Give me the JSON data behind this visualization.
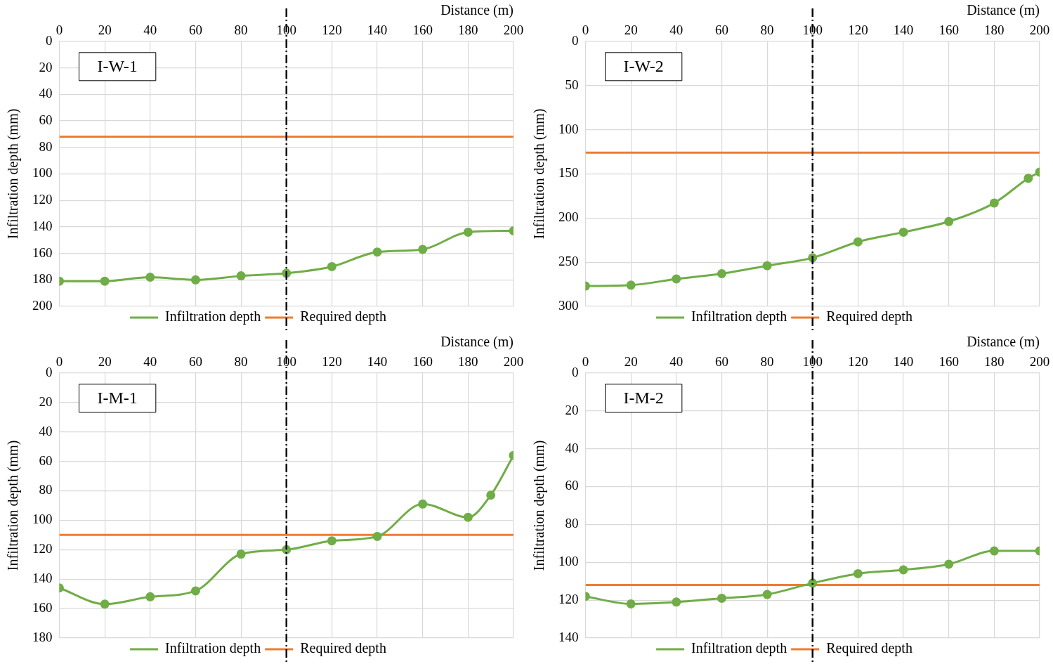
{
  "chart_data": [
    {
      "type": "line",
      "title": "I-W-1",
      "xlabel": "Distance (m)",
      "ylabel": "Infiltration depth (mm)",
      "xlim": [
        0,
        200
      ],
      "xticks": [
        0,
        20,
        40,
        60,
        80,
        100,
        120,
        140,
        160,
        180,
        200
      ],
      "ylim": [
        200,
        0
      ],
      "yticks": [
        0,
        20,
        40,
        60,
        80,
        100,
        120,
        140,
        160,
        180,
        200
      ],
      "grid": true,
      "legend": "bottom",
      "series": [
        {
          "name": "Infiltration depth",
          "color": "#70ad47",
          "marker": "circle",
          "x": [
            0,
            20,
            40,
            60,
            80,
            100,
            120,
            140,
            160,
            180,
            200
          ],
          "values": [
            181,
            181,
            178,
            180,
            177,
            175,
            170,
            159,
            157,
            144,
            143
          ]
        },
        {
          "name": "Required depth",
          "color": "#ed7d31",
          "marker": "none",
          "x": [
            0,
            200
          ],
          "values": [
            72,
            72
          ]
        }
      ],
      "ref_lines": [
        {
          "axis": "x",
          "value": 100,
          "color": "#000000",
          "line_style": "dashed"
        }
      ]
    },
    {
      "type": "line",
      "title": "I-W-2",
      "xlabel": "Distance (m)",
      "ylabel": "Infiltration depth (mm)",
      "xlim": [
        0,
        200
      ],
      "xticks": [
        0,
        20,
        40,
        60,
        80,
        100,
        120,
        140,
        160,
        180,
        200
      ],
      "ylim": [
        300,
        0
      ],
      "yticks": [
        0,
        50,
        100,
        150,
        200,
        250,
        300
      ],
      "grid": true,
      "legend": "bottom",
      "series": [
        {
          "name": "Infiltration depth",
          "color": "#70ad47",
          "marker": "circle",
          "x": [
            0,
            20,
            40,
            60,
            80,
            100,
            120,
            140,
            160,
            180,
            195,
            200
          ],
          "values": [
            277,
            276,
            269,
            263,
            254,
            245,
            227,
            216,
            204,
            183,
            155,
            148
          ]
        },
        {
          "name": "Required depth",
          "color": "#ed7d31",
          "marker": "none",
          "x": [
            0,
            200
          ],
          "values": [
            126,
            126
          ]
        }
      ],
      "ref_lines": [
        {
          "axis": "x",
          "value": 100,
          "color": "#000000",
          "line_style": "dashed"
        }
      ]
    },
    {
      "type": "line",
      "title": "I-M-1",
      "xlabel": "Distance (m)",
      "ylabel": "Infiltration depth (mm)",
      "xlim": [
        0,
        200
      ],
      "xticks": [
        0,
        20,
        40,
        60,
        80,
        100,
        120,
        140,
        160,
        180,
        200
      ],
      "ylim": [
        180,
        0
      ],
      "yticks": [
        0,
        20,
        40,
        60,
        80,
        100,
        120,
        140,
        160,
        180
      ],
      "grid": true,
      "legend": "bottom",
      "series": [
        {
          "name": "Infiltration depth",
          "color": "#70ad47",
          "marker": "circle",
          "x": [
            0,
            20,
            40,
            60,
            80,
            100,
            120,
            140,
            160,
            180,
            190,
            200
          ],
          "values": [
            146,
            157,
            152,
            148,
            123,
            120,
            114,
            111,
            89,
            98,
            83,
            56
          ]
        },
        {
          "name": "Required depth",
          "color": "#ed7d31",
          "marker": "none",
          "x": [
            0,
            200
          ],
          "values": [
            110,
            110
          ]
        }
      ],
      "ref_lines": [
        {
          "axis": "x",
          "value": 100,
          "color": "#000000",
          "line_style": "dashed"
        }
      ]
    },
    {
      "type": "line",
      "title": "I-M-2",
      "xlabel": "Distance (m)",
      "ylabel": "Infiltration depth (mm)",
      "xlim": [
        0,
        200
      ],
      "xticks": [
        0,
        20,
        40,
        60,
        80,
        100,
        120,
        140,
        160,
        180,
        200
      ],
      "ylim": [
        140,
        0
      ],
      "yticks": [
        0,
        20,
        40,
        60,
        80,
        100,
        120,
        140
      ],
      "grid": true,
      "legend": "bottom",
      "series": [
        {
          "name": "Infiltration depth",
          "color": "#70ad47",
          "marker": "circle",
          "x": [
            0,
            20,
            40,
            60,
            80,
            100,
            120,
            140,
            160,
            180,
            200
          ],
          "values": [
            118,
            122,
            121,
            119,
            117,
            111,
            106,
            104,
            101,
            94,
            94
          ]
        },
        {
          "name": "Required depth",
          "color": "#ed7d31",
          "marker": "none",
          "x": [
            0,
            200
          ],
          "values": [
            112,
            112
          ]
        }
      ],
      "ref_lines": [
        {
          "axis": "x",
          "value": 100,
          "color": "#000000",
          "line_style": "dashed"
        }
      ]
    }
  ]
}
